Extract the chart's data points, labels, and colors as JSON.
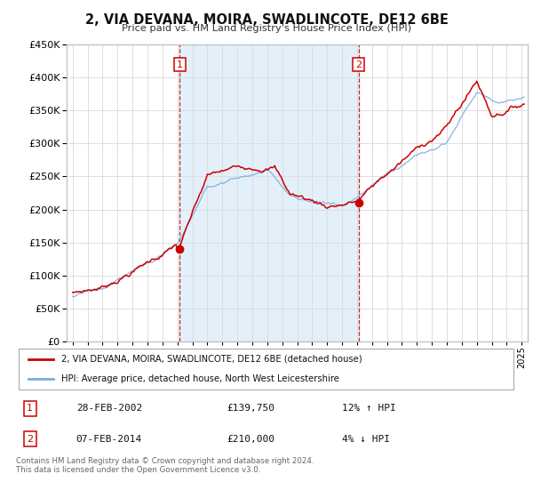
{
  "title": "2, VIA DEVANA, MOIRA, SWADLINCOTE, DE12 6BE",
  "subtitle": "Price paid vs. HM Land Registry's House Price Index (HPI)",
  "ylim": [
    0,
    450000
  ],
  "yticks": [
    0,
    50000,
    100000,
    150000,
    200000,
    250000,
    300000,
    350000,
    400000,
    450000
  ],
  "xlim_start": 1994.6,
  "xlim_end": 2025.4,
  "red_color": "#cc0000",
  "blue_color": "#7aacde",
  "vline_color": "#cc0000",
  "sale1_year": 2002.16,
  "sale1_price": 139750,
  "sale2_year": 2014.1,
  "sale2_price": 210000,
  "legend_label1": "2, VIA DEVANA, MOIRA, SWADLINCOTE, DE12 6BE (detached house)",
  "legend_label2": "HPI: Average price, detached house, North West Leicestershire",
  "table_row1": [
    "1",
    "28-FEB-2002",
    "£139,750",
    "12% ↑ HPI"
  ],
  "table_row2": [
    "2",
    "07-FEB-2014",
    "£210,000",
    "4% ↓ HPI"
  ],
  "footnote1": "Contains HM Land Registry data © Crown copyright and database right 2024.",
  "footnote2": "This data is licensed under the Open Government Licence v3.0.",
  "background_color": "#ffffff",
  "plot_bg_color": "#ffffff",
  "grid_color": "#dddddd",
  "shaded_color": "#cce4f7"
}
